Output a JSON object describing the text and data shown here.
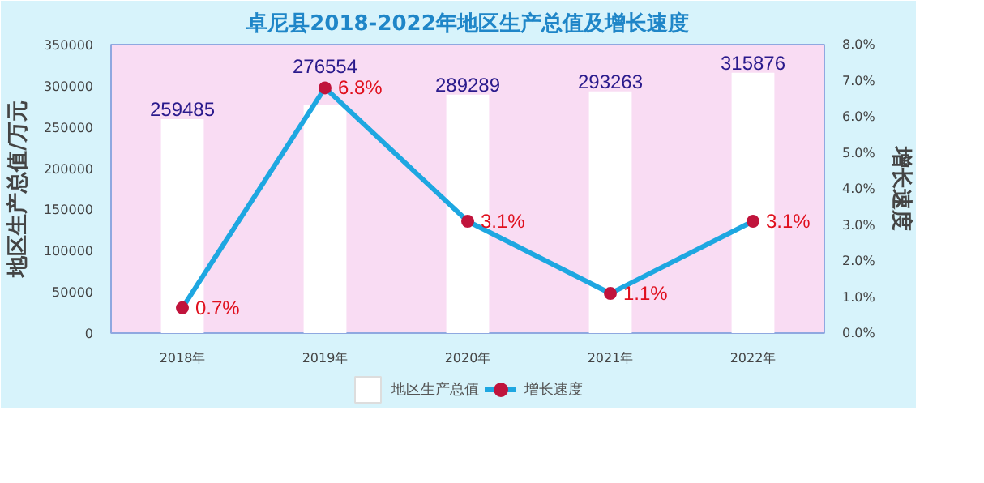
{
  "chart_data": {
    "type": "bar",
    "title": "卓尼县2018-2022年地区生产总值及增长速度",
    "categories": [
      "2018年",
      "2019年",
      "2020年",
      "2021年",
      "2022年"
    ],
    "ylabel": "地区生产总值/万元",
    "y2label": "增长速度",
    "ylim": [
      0,
      350000
    ],
    "yticks": [
      0,
      50000,
      100000,
      150000,
      200000,
      250000,
      300000,
      350000
    ],
    "y2lim": [
      0,
      8
    ],
    "y2ticks": [
      {
        "value": 0,
        "label": "0.0%"
      },
      {
        "value": 1,
        "label": "1.0%"
      },
      {
        "value": 2,
        "label": "2.0%"
      },
      {
        "value": 3,
        "label": "3.0%"
      },
      {
        "value": 4,
        "label": "4.0%"
      },
      {
        "value": 5,
        "label": "5.0%"
      },
      {
        "value": 6,
        "label": "6.0%"
      },
      {
        "value": 7,
        "label": "7.0%"
      },
      {
        "value": 8,
        "label": "8.0%"
      }
    ],
    "series": [
      {
        "name": "地区生产总值",
        "type": "bar",
        "color": "#ffffff",
        "values": [
          259485,
          276554,
          289289,
          293263,
          315876
        ],
        "value_labels": [
          "259485",
          "276554",
          "289289",
          "293263",
          "315876"
        ]
      },
      {
        "name": "增长速度",
        "type": "line",
        "axis": "y2",
        "color": "#1ea7e1",
        "marker": "circle",
        "values": [
          0.7,
          6.8,
          3.1,
          1.1,
          3.1
        ],
        "value_labels": [
          "0.7%",
          "6.8%",
          "3.1%",
          "1.1%",
          "3.1%"
        ]
      }
    ],
    "grid": false,
    "legend": "bottom"
  }
}
